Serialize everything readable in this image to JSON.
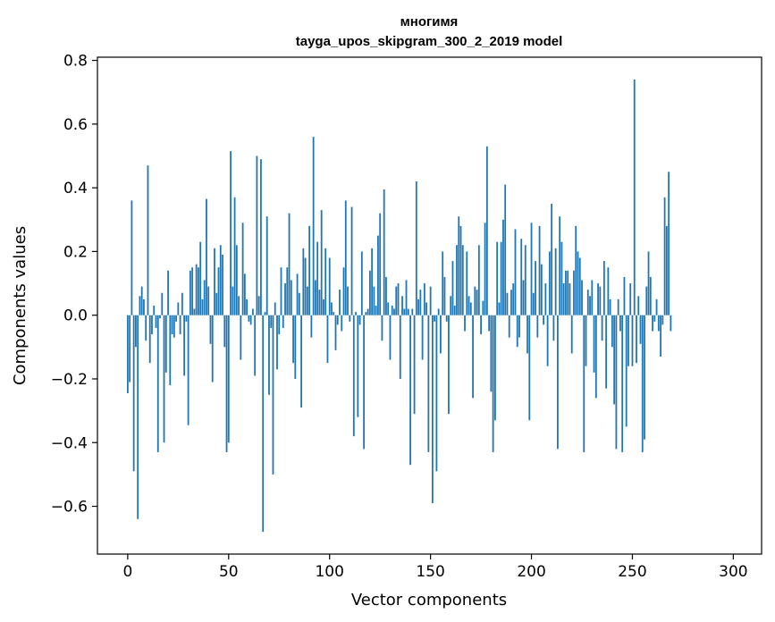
{
  "chart_data": {
    "type": "bar",
    "title_line1": "многимя",
    "title_line2": "tayga_upos_skipgram_300_2_2019 model",
    "xlabel": "Vector components",
    "ylabel": "Components values",
    "xlim": [
      -15,
      314
    ],
    "ylim": [
      -0.75,
      0.81
    ],
    "x_ticks": [
      0,
      50,
      100,
      150,
      200,
      250,
      300
    ],
    "x_tick_labels": [
      "0",
      "50",
      "100",
      "150",
      "200",
      "250",
      "300"
    ],
    "y_ticks": [
      -0.6,
      -0.4,
      -0.2,
      0.0,
      0.2,
      0.4,
      0.6,
      0.8
    ],
    "y_tick_labels": [
      "−0.6",
      "−0.4",
      "−0.2",
      "0.0",
      "0.2",
      "0.4",
      "0.6",
      "0.8"
    ],
    "bar_color": "#1f77b4",
    "grid": false,
    "values": [
      -0.245,
      -0.21,
      0.36,
      -0.49,
      -0.1,
      -0.64,
      0.06,
      0.09,
      0.05,
      -0.08,
      0.47,
      -0.15,
      -0.06,
      0.03,
      -0.04,
      -0.43,
      -0.01,
      0.07,
      -0.4,
      -0.18,
      0.14,
      -0.22,
      -0.06,
      -0.07,
      -0.02,
      0.04,
      -0.06,
      0.07,
      -0.19,
      -0.02,
      -0.345,
      0.14,
      0.15,
      0.02,
      0.16,
      0.15,
      0.23,
      0.05,
      0.11,
      0.365,
      0.09,
      -0.09,
      -0.21,
      0.21,
      0.07,
      0.15,
      0.22,
      0.19,
      -0.1,
      -0.43,
      -0.4,
      0.515,
      0.09,
      0.37,
      0.22,
      0.06,
      -0.14,
      0.29,
      0.13,
      0.05,
      -0.02,
      -0.03,
      0.02,
      -0.19,
      0.5,
      0.06,
      0.49,
      -0.68,
      0.01,
      0.31,
      -0.25,
      -0.04,
      -0.5,
      0.04,
      -0.17,
      -0.06,
      0.15,
      -0.04,
      0.1,
      0.15,
      0.32,
      0.11,
      -0.15,
      -0.2,
      0.13,
      0.07,
      -0.29,
      0.21,
      0.18,
      0.09,
      0.28,
      -0.07,
      0.56,
      0.11,
      0.23,
      0.08,
      0.33,
      0.05,
      0.21,
      -0.15,
      0.18,
      0.04,
      0.01,
      -0.11,
      -0.03,
      0.08,
      -0.05,
      0.15,
      0.36,
      0.09,
      -0.02,
      0.34,
      -0.38,
      0.01,
      -0.32,
      -0.03,
      0.2,
      -0.42,
      0.01,
      0.02,
      0.14,
      0.21,
      0.09,
      0.03,
      0.25,
      0.32,
      -0.08,
      0.395,
      0.12,
      0.04,
      -0.14,
      0.03,
      0.02,
      0.09,
      0.1,
      -0.2,
      0.06,
      0.02,
      0.11,
      0.02,
      -0.47,
      0.02,
      -0.31,
      0.42,
      0.05,
      0.08,
      -0.14,
      0.1,
      0.04,
      -0.43,
      0.09,
      -0.59,
      -0.02,
      -0.49,
      0.02,
      -0.12,
      0.2,
      0.12,
      -0.02,
      -0.31,
      0.06,
      0.17,
      0.03,
      0.22,
      0.31,
      0.28,
      0.22,
      -0.05,
      0.2,
      0.06,
      0.04,
      -0.26,
      0.09,
      0.08,
      0.22,
      -0.06,
      0.045,
      0.29,
      0.53,
      -0.05,
      -0.24,
      -0.43,
      -0.33,
      0.23,
      0.04,
      0.23,
      0.3,
      0.41,
      0.07,
      -0.07,
      0.08,
      0.1,
      0.27,
      -0.1,
      -0.07,
      0.24,
      0.11,
      0.22,
      -0.12,
      -0.33,
      0.29,
      0.07,
      0.17,
      -0.07,
      0.28,
      0.16,
      -0.03,
      0.1,
      -0.16,
      0.2,
      0.35,
      -0.08,
      0.21,
      -0.42,
      0.31,
      0.23,
      0.1,
      0.14,
      0.14,
      0.1,
      -0.12,
      0.14,
      0.28,
      0.2,
      0.18,
      0.11,
      -0.43,
      -0.16,
      0.08,
      0.06,
      0.11,
      -0.18,
      -0.26,
      0.1,
      0.09,
      -0.08,
      0.17,
      -0.23,
      0.15,
      0.05,
      -0.1,
      -0.28,
      -0.42,
      0.05,
      -0.05,
      -0.43,
      0.12,
      -0.35,
      -0.16,
      0.1,
      -0.16,
      0.74,
      -0.15,
      0.06,
      -0.09,
      -0.43,
      -0.39,
      0.09,
      0.2,
      0.12,
      -0.05,
      -0.02,
      0.05,
      -0.05,
      -0.13,
      -0.03,
      0.37,
      0.28,
      0.45,
      -0.05
    ]
  }
}
